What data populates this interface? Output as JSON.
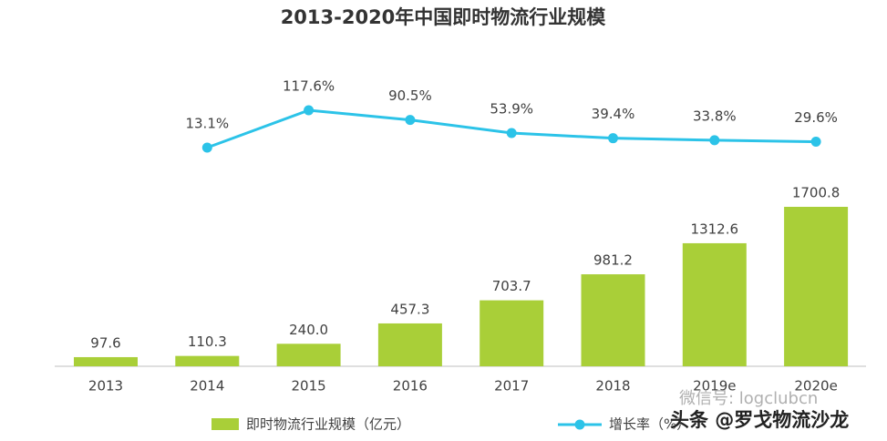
{
  "chart_data": {
    "type": "bar",
    "title": "2013-2020年中国即时物流行业规模",
    "categories": [
      "2013",
      "2014",
      "2015",
      "2016",
      "2017",
      "2018",
      "2019e",
      "2020e"
    ],
    "series": [
      {
        "name": "即时物流行业规模（亿元）",
        "type": "bar",
        "color": "#a9cf38",
        "values": [
          97.6,
          110.3,
          240.0,
          457.3,
          703.7,
          981.2,
          1312.6,
          1700.8
        ],
        "value_labels": [
          "97.6",
          "110.3",
          "240.0",
          "457.3",
          "703.7",
          "981.2",
          "1312.6",
          "1700.8"
        ]
      },
      {
        "name": "增长率（%）",
        "type": "line",
        "color": "#2cc3e8",
        "values": [
          null,
          13.1,
          117.6,
          90.5,
          53.9,
          39.4,
          33.8,
          29.6
        ],
        "value_labels": [
          null,
          "13.1%",
          "117.6%",
          "90.5%",
          "53.9%",
          "39.4%",
          "33.8%",
          "29.6%"
        ]
      }
    ],
    "watermarks": [
      "微信号: logclubcn",
      "头条 @罗戈物流沙龙"
    ]
  }
}
